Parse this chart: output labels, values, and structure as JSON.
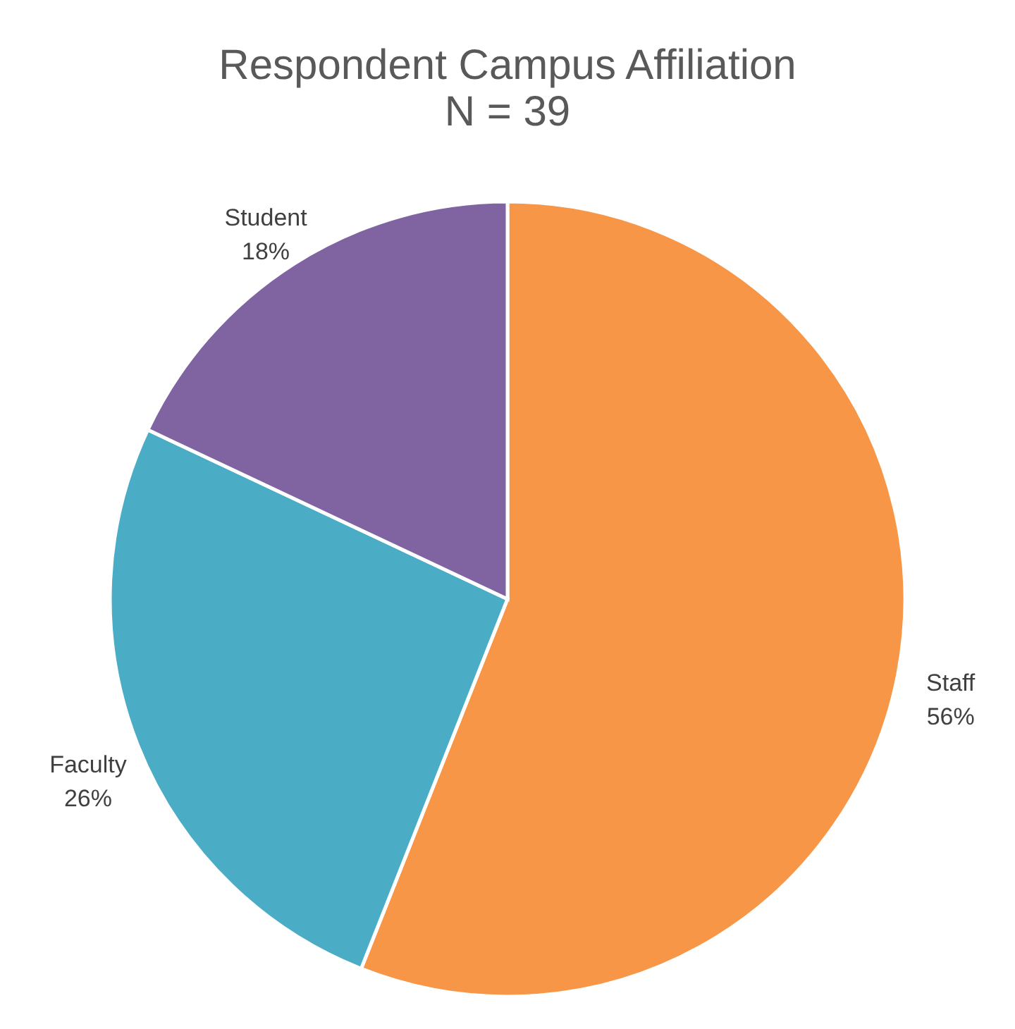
{
  "chart_data": {
    "type": "pie",
    "title": "Respondent Campus Affiliation",
    "subtitle": "N = 39",
    "categories": [
      "Staff",
      "Faculty",
      "Student"
    ],
    "values": [
      56,
      26,
      18
    ],
    "value_labels": [
      "56%",
      "26%",
      "18%"
    ],
    "colors": [
      "#f79646",
      "#4bacc6",
      "#8064a2"
    ],
    "legend": false
  }
}
